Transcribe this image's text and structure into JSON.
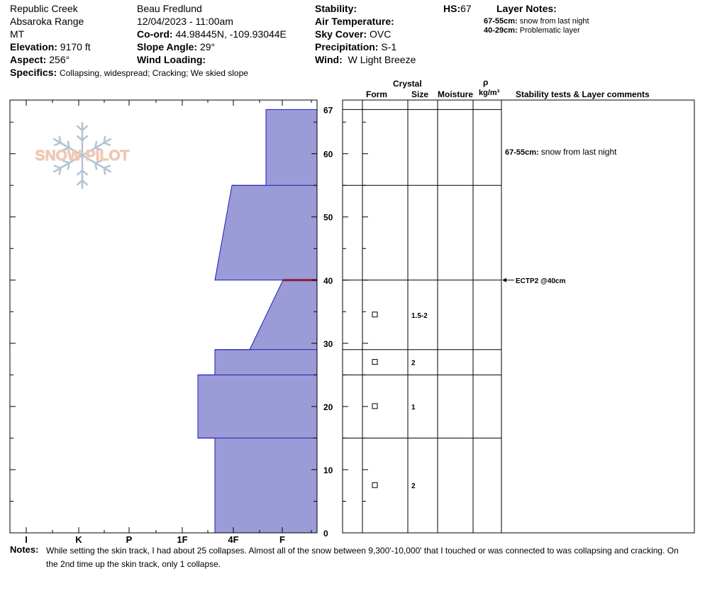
{
  "header": {
    "location": "Republic Creek",
    "range": "Absaroka Range",
    "state": "MT",
    "elevation_label": "Elevation:",
    "elevation_value": "9170 ft",
    "aspect_label": "Aspect:",
    "aspect_value": "256°",
    "specifics_label": "Specifics:",
    "specifics_value": "Collapsing, widespread;  Cracking;  We skied slope",
    "observer": "Beau  Fredlund",
    "datetime": "12/04/2023 - 11:00am",
    "coord_label": "Co-ord:",
    "coord_value": "44.98445N, -109.93044E",
    "slope_label": "Slope Angle:",
    "slope_value": "29°",
    "wind_loading_label": "Wind Loading:",
    "wind_loading_value": "",
    "stability_label": "Stability:",
    "stability_value": "",
    "air_temp_label": "Air Temperature:",
    "air_temp_value": "",
    "sky_label": "Sky Cover:",
    "sky_value": "OVC",
    "precip_label": "Precipitation:",
    "precip_value": "S-1",
    "wind_label": "Wind:",
    "wind_value": "W Light Breeze",
    "hs_label": "HS:",
    "hs_value": "67",
    "layer_notes_title": "Layer Notes:",
    "layer_notes": [
      {
        "range": "67-55cm:",
        "text": "snow from last night"
      },
      {
        "range": "40-29cm:",
        "text": "Problematic layer"
      }
    ]
  },
  "logo": {
    "text": "SNOW PILOT"
  },
  "columns": {
    "crystal": "Crystal",
    "form": "Form",
    "size": "Size",
    "moisture": "Moisture",
    "rho": "ρ",
    "density_unit": "kg/m³",
    "stability_comments": "Stability tests & Layer comments"
  },
  "notes": {
    "label": "Notes:",
    "line1": "While setting the skin track, I had about 25 collapses.  Almost all of the snow between 9,300'-10,000' that I touched or was connected to was collapsing and cracking.  On",
    "line2": "the 2nd time up the skin track, only 1 collapse."
  },
  "colors": {
    "hardness_fill": "#9b9bd7",
    "hardness_stroke": "#1c1cb4",
    "weak_layer": "#8c1c3c",
    "logo_blue": "#b4c3d2",
    "logo_orange": "#f0c8b4"
  },
  "chart_data": {
    "type": "snow-profile",
    "depth_range": [
      0,
      67
    ],
    "depth_ticks": [
      0,
      10,
      20,
      30,
      40,
      50,
      60,
      67
    ],
    "hardness_ticks": [
      "I",
      "K",
      "P",
      "1F",
      "4F",
      "F"
    ],
    "hardness_profile": [
      {
        "depth": 67,
        "hardness": "F"
      },
      {
        "depth": 55,
        "hardness": "F",
        "to_hardness": "4F"
      },
      {
        "depth": 40,
        "hardness": "4F+"
      },
      {
        "depth": 40,
        "hardness": "F+",
        "to_hardness": "4F-"
      },
      {
        "depth": 29,
        "hardness": "4F-"
      },
      {
        "depth": 29,
        "hardness": "4F+"
      },
      {
        "depth": 25,
        "hardness": "4F+"
      },
      {
        "depth": 25,
        "hardness": "1F-"
      },
      {
        "depth": 15,
        "hardness": "1F-"
      },
      {
        "depth": 15,
        "hardness": "4F+"
      },
      {
        "depth": 0,
        "hardness": "4F+"
      }
    ],
    "layer_boundaries": [
      67,
      55,
      40,
      29,
      25,
      15
    ],
    "weak_layer_depth": 40,
    "crystals": [
      {
        "depth": 34.5,
        "size": "1.5-2"
      },
      {
        "depth": 27,
        "size": "2"
      },
      {
        "depth": 20,
        "size": "1"
      },
      {
        "depth": 7.5,
        "size": "2"
      }
    ],
    "comments": [
      {
        "depth": 60.3,
        "range": "67-55cm:",
        "text": "snow from last night"
      }
    ],
    "stability_tests": [
      {
        "depth": 40,
        "text": "ECTP2 @40cm"
      }
    ]
  }
}
